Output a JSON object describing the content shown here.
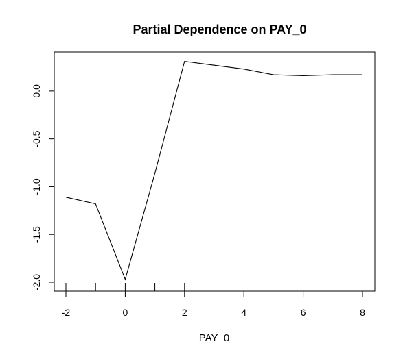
{
  "chart_data": {
    "type": "line",
    "title": "Partial Dependence on PAY_0",
    "xlabel": "PAY_0",
    "ylabel": "",
    "xlim": [
      -2,
      8
    ],
    "ylim": [
      -2.0,
      0.3
    ],
    "x_ticks": [
      {
        "value": -2,
        "label": "-2"
      },
      {
        "value": 0,
        "label": "0"
      },
      {
        "value": 2,
        "label": "2"
      },
      {
        "value": 4,
        "label": "4"
      },
      {
        "value": 6,
        "label": "6"
      },
      {
        "value": 8,
        "label": "8"
      }
    ],
    "y_ticks": [
      {
        "value": -2.0,
        "label": "-2.0"
      },
      {
        "value": -1.5,
        "label": "-1.5"
      },
      {
        "value": -1.0,
        "label": "-1.0"
      },
      {
        "value": -0.5,
        "label": "-0.5"
      },
      {
        "value": 0.0,
        "label": "0.0"
      }
    ],
    "rug": [
      -2,
      -1,
      0,
      1,
      2
    ],
    "series": [
      {
        "x": [
          -2,
          -1,
          0,
          1,
          2,
          3,
          4,
          5,
          6,
          7,
          8
        ],
        "y": [
          -1.11,
          -1.18,
          -1.97,
          -0.86,
          0.31,
          0.27,
          0.23,
          0.17,
          0.16,
          0.17,
          0.17
        ]
      }
    ],
    "grid": false,
    "line_color": "#000000"
  }
}
